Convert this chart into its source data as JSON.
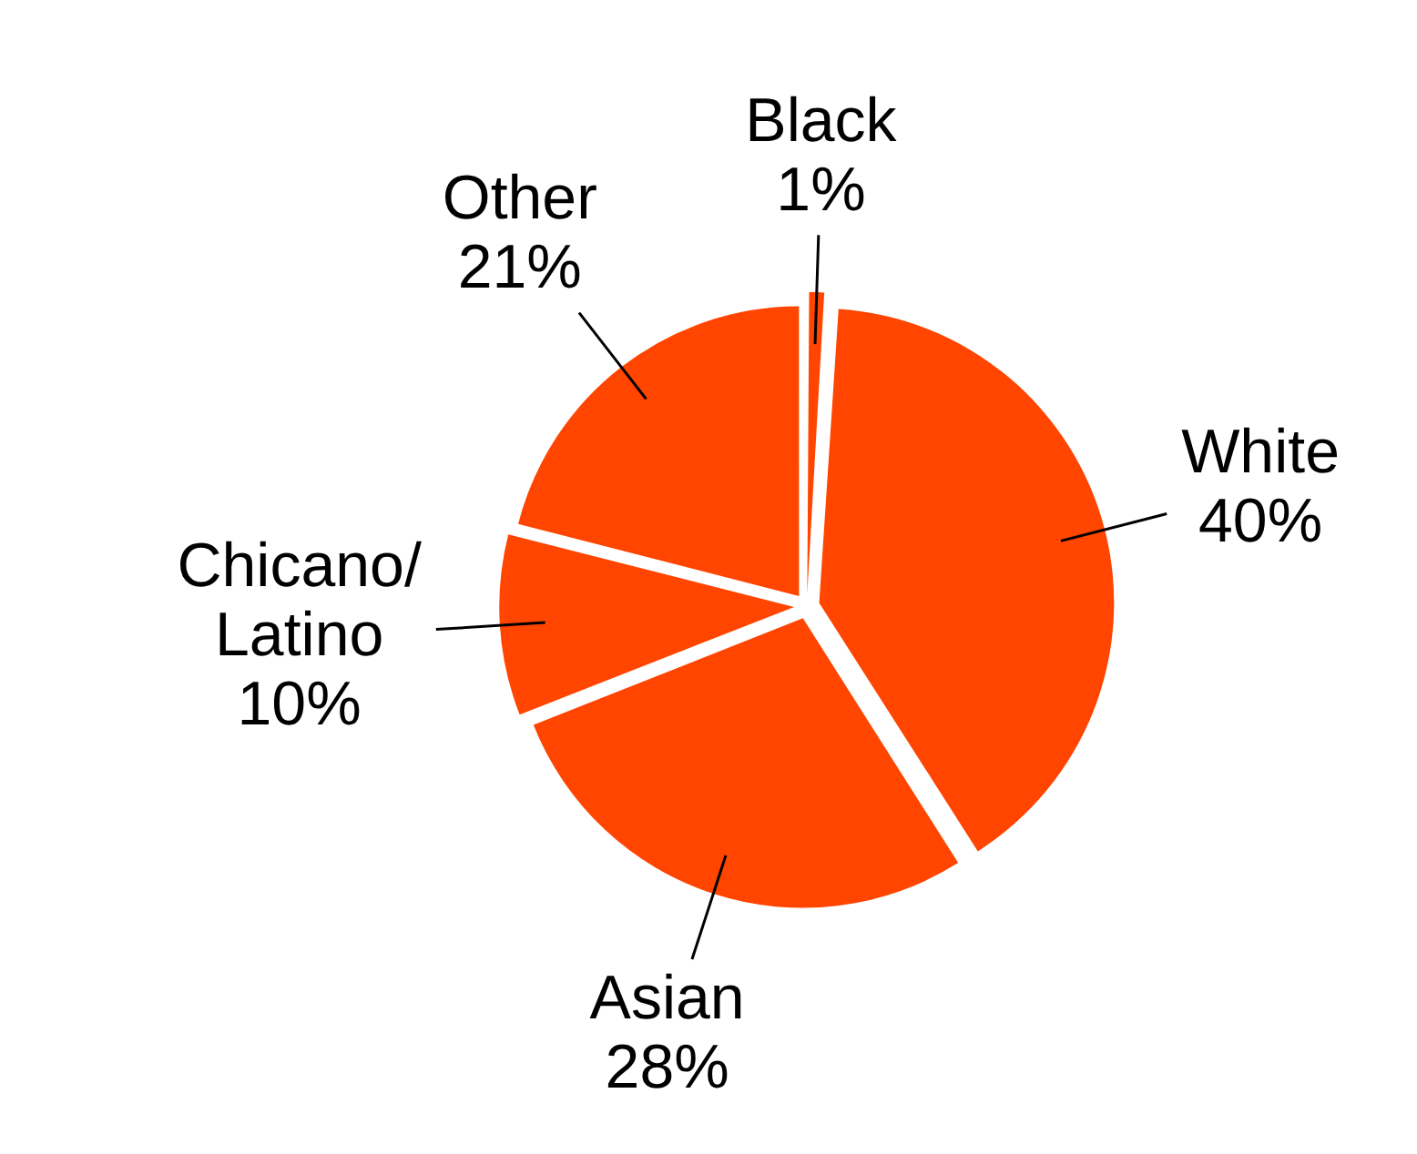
{
  "chart_data": {
    "type": "pie",
    "categories": [
      "Black",
      "White",
      "Asian",
      "Chicano/Latino",
      "Other"
    ],
    "values": [
      1,
      40,
      28,
      10,
      21
    ],
    "colors": [
      "#ff4500",
      "#ff4500",
      "#ff4500",
      "#ff4500",
      "#ff4500"
    ],
    "value_labels": [
      "1%",
      "40%",
      "28%",
      "10%",
      "21%"
    ],
    "legend": false
  }
}
